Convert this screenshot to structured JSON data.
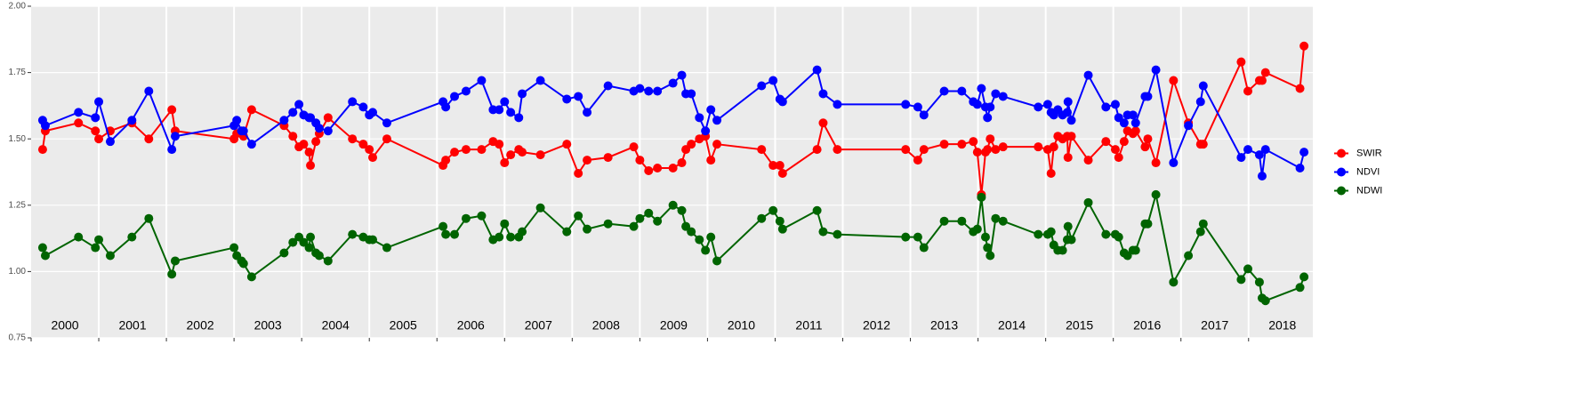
{
  "chart_data": {
    "type": "line",
    "x": [
      2000.17,
      2000.21,
      2000.7,
      2000.95,
      2001.0,
      2001.17,
      2001.49,
      2001.74,
      2002.08,
      2002.13,
      2003.0,
      2003.04,
      2003.11,
      2003.14,
      2003.26,
      2003.74,
      2003.87,
      2003.96,
      2004.03,
      2004.11,
      2004.13,
      2004.21,
      2004.26,
      2004.39,
      2004.75,
      2004.91,
      2005.0,
      2005.05,
      2005.26,
      2006.09,
      2006.13,
      2006.26,
      2006.43,
      2006.66,
      2006.83,
      2006.92,
      2007.0,
      2007.09,
      2007.21,
      2007.26,
      2007.53,
      2007.92,
      2008.09,
      2008.22,
      2008.53,
      2008.91,
      2009.0,
      2009.13,
      2009.26,
      2009.49,
      2009.62,
      2009.68,
      2009.76,
      2009.88,
      2009.97,
      2010.05,
      2010.14,
      2010.8,
      2010.97,
      2011.07,
      2011.11,
      2011.62,
      2011.71,
      2011.92,
      2012.93,
      2013.11,
      2013.2,
      2013.5,
      2013.76,
      2013.93,
      2013.99,
      2014.05,
      2014.11,
      2014.14,
      2014.18,
      2014.26,
      2014.37,
      2014.89,
      2015.03,
      2015.08,
      2015.12,
      2015.18,
      2015.25,
      2015.32,
      2015.33,
      2015.38,
      2015.63,
      2015.89,
      2016.03,
      2016.08,
      2016.16,
      2016.21,
      2016.29,
      2016.33,
      2016.47,
      2016.51,
      2016.63,
      2016.89,
      2017.11,
      2017.29,
      2017.33,
      2017.89,
      2017.99,
      2018.16,
      2018.2,
      2018.25,
      2018.76,
      2018.82
    ],
    "series": [
      {
        "name": "SWIR",
        "color": "#ff0000",
        "values": [
          1.46,
          1.53,
          1.56,
          1.53,
          1.5,
          1.53,
          1.56,
          1.5,
          1.61,
          1.53,
          1.5,
          1.52,
          1.52,
          1.51,
          1.61,
          1.55,
          1.51,
          1.47,
          1.48,
          1.45,
          1.4,
          1.49,
          1.52,
          1.58,
          1.5,
          1.48,
          1.46,
          1.43,
          1.5,
          1.4,
          1.42,
          1.45,
          1.46,
          1.46,
          1.49,
          1.48,
          1.41,
          1.44,
          1.46,
          1.45,
          1.44,
          1.48,
          1.37,
          1.42,
          1.43,
          1.47,
          1.42,
          1.38,
          1.39,
          1.39,
          1.41,
          1.46,
          1.48,
          1.5,
          1.51,
          1.42,
          1.48,
          1.46,
          1.4,
          1.4,
          1.37,
          1.46,
          1.56,
          1.46,
          1.46,
          1.42,
          1.46,
          1.48,
          1.48,
          1.49,
          1.45,
          1.29,
          1.45,
          1.46,
          1.5,
          1.46,
          1.47,
          1.47,
          1.46,
          1.37,
          1.47,
          1.51,
          1.5,
          1.51,
          1.43,
          1.51,
          1.42,
          1.49,
          1.46,
          1.43,
          1.49,
          1.53,
          1.52,
          1.53,
          1.47,
          1.5,
          1.41,
          1.72,
          1.56,
          1.48,
          1.48,
          1.79,
          1.68,
          1.72,
          1.72,
          1.75,
          1.69,
          1.85
        ]
      },
      {
        "name": "NDVI",
        "color": "#0000ff",
        "values": [
          1.57,
          1.55,
          1.6,
          1.58,
          1.64,
          1.49,
          1.57,
          1.68,
          1.46,
          1.51,
          1.55,
          1.57,
          1.53,
          1.53,
          1.48,
          1.57,
          1.6,
          1.63,
          1.59,
          1.58,
          1.58,
          1.56,
          1.54,
          1.53,
          1.64,
          1.62,
          1.59,
          1.6,
          1.56,
          1.64,
          1.62,
          1.66,
          1.68,
          1.72,
          1.61,
          1.61,
          1.64,
          1.6,
          1.58,
          1.67,
          1.72,
          1.65,
          1.66,
          1.6,
          1.7,
          1.68,
          1.69,
          1.68,
          1.68,
          1.71,
          1.74,
          1.67,
          1.67,
          1.58,
          1.53,
          1.61,
          1.57,
          1.7,
          1.72,
          1.65,
          1.64,
          1.76,
          1.67,
          1.63,
          1.63,
          1.62,
          1.59,
          1.68,
          1.68,
          1.64,
          1.63,
          1.69,
          1.62,
          1.58,
          1.62,
          1.67,
          1.66,
          1.62,
          1.63,
          1.6,
          1.59,
          1.61,
          1.59,
          1.6,
          1.64,
          1.57,
          1.74,
          1.62,
          1.63,
          1.58,
          1.56,
          1.59,
          1.59,
          1.56,
          1.66,
          1.66,
          1.76,
          1.41,
          1.55,
          1.64,
          1.7,
          1.43,
          1.46,
          1.44,
          1.36,
          1.46,
          1.39,
          1.45
        ]
      },
      {
        "name": "NDWI",
        "color": "#006400",
        "values": [
          1.09,
          1.06,
          1.13,
          1.09,
          1.12,
          1.06,
          1.13,
          1.2,
          0.99,
          1.04,
          1.09,
          1.06,
          1.04,
          1.03,
          0.98,
          1.07,
          1.11,
          1.13,
          1.11,
          1.09,
          1.13,
          1.07,
          1.06,
          1.04,
          1.14,
          1.13,
          1.12,
          1.12,
          1.09,
          1.17,
          1.14,
          1.14,
          1.2,
          1.21,
          1.12,
          1.13,
          1.18,
          1.13,
          1.13,
          1.15,
          1.24,
          1.15,
          1.21,
          1.16,
          1.18,
          1.17,
          1.2,
          1.22,
          1.19,
          1.25,
          1.23,
          1.17,
          1.15,
          1.12,
          1.08,
          1.13,
          1.04,
          1.2,
          1.23,
          1.19,
          1.16,
          1.23,
          1.15,
          1.14,
          1.13,
          1.13,
          1.09,
          1.19,
          1.19,
          1.15,
          1.16,
          1.28,
          1.13,
          1.09,
          1.06,
          1.2,
          1.19,
          1.14,
          1.14,
          1.15,
          1.1,
          1.08,
          1.08,
          1.12,
          1.17,
          1.12,
          1.26,
          1.14,
          1.14,
          1.13,
          1.07,
          1.06,
          1.08,
          1.08,
          1.18,
          1.18,
          1.29,
          0.96,
          1.06,
          1.15,
          1.18,
          0.97,
          1.01,
          0.96,
          0.9,
          0.89,
          0.94,
          0.98
        ]
      }
    ],
    "xlim": [
      2000,
      2018.95
    ],
    "xticks": [
      {
        "value": 2000,
        "label": "2000"
      },
      {
        "value": 2001,
        "label": "2001"
      },
      {
        "value": 2002,
        "label": "2002"
      },
      {
        "value": 2003,
        "label": "2003"
      },
      {
        "value": 2004,
        "label": "2004"
      },
      {
        "value": 2005,
        "label": "2005"
      },
      {
        "value": 2006,
        "label": "2006"
      },
      {
        "value": 2007,
        "label": "2007"
      },
      {
        "value": 2008,
        "label": "2008"
      },
      {
        "value": 2009,
        "label": "2009"
      },
      {
        "value": 2010,
        "label": "2010"
      },
      {
        "value": 2011,
        "label": "2011"
      },
      {
        "value": 2012,
        "label": "2012"
      },
      {
        "value": 2013,
        "label": "2013"
      },
      {
        "value": 2014,
        "label": "2014"
      },
      {
        "value": 2015,
        "label": "2015"
      },
      {
        "value": 2016,
        "label": "2016"
      },
      {
        "value": 2017,
        "label": "2017"
      },
      {
        "value": 2018,
        "label": "2018"
      }
    ],
    "ylim": [
      0.75,
      2.0
    ],
    "yticks": [
      {
        "value": 0.75,
        "label": "0.75"
      },
      {
        "value": 1.0,
        "label": "1.00"
      },
      {
        "value": 1.25,
        "label": "1.25"
      },
      {
        "value": 1.5,
        "label": "1.50"
      },
      {
        "value": 1.75,
        "label": "1.75"
      },
      {
        "value": 2.0,
        "label": "2.00"
      }
    ],
    "grid": true,
    "legend": "right"
  }
}
